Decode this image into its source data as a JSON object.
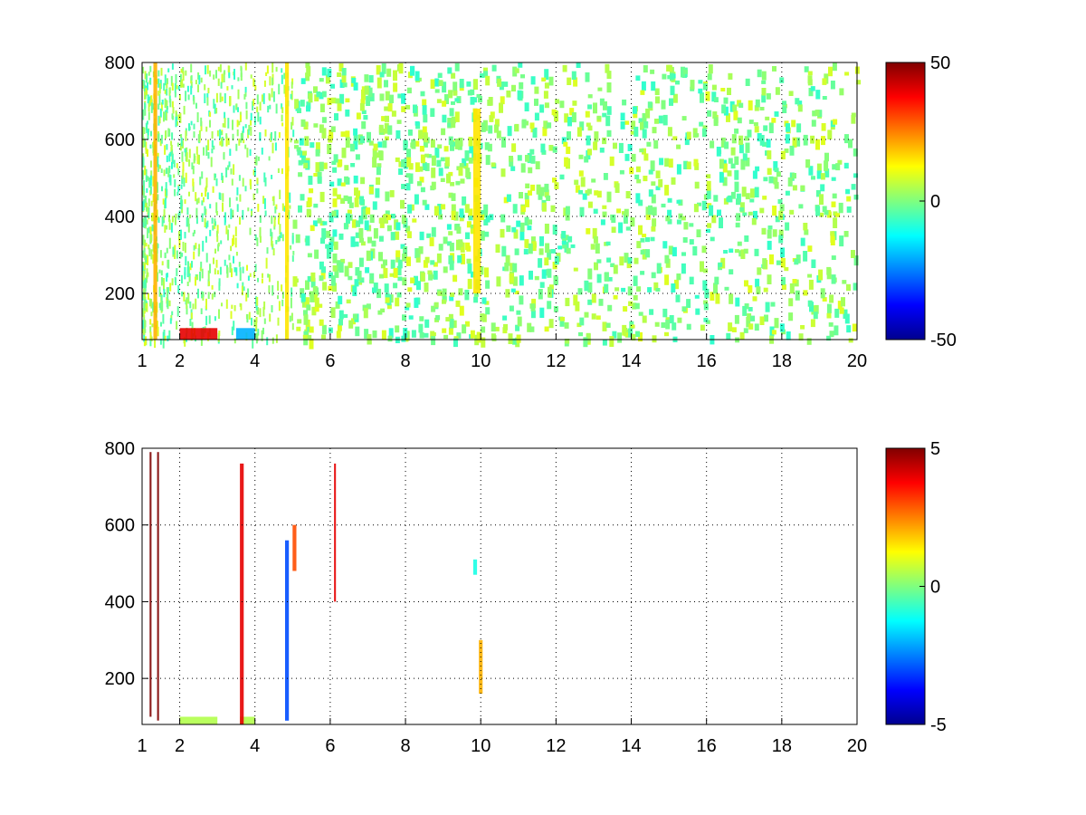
{
  "chart_data": [
    {
      "type": "heatmap",
      "title": "",
      "xlabel": "",
      "ylabel": "",
      "xlim": [
        1,
        20
      ],
      "ylim": [
        80,
        800
      ],
      "xticks": [
        1,
        2,
        4,
        6,
        8,
        10,
        12,
        14,
        16,
        18,
        20
      ],
      "yticks": [
        200,
        400,
        600,
        800
      ],
      "grid": true,
      "colormap": "jet",
      "clim": [
        -50,
        50
      ],
      "colorbar_ticks": [
        50,
        0,
        -50
      ],
      "colors": {
        "low": "#00008f",
        "mid": "#7fff7f",
        "high": "#800000",
        "grid": "#000000"
      },
      "features": [
        {
          "x": [
            2.0,
            3.0
          ],
          "y": [
            80,
            110
          ],
          "value": 40
        },
        {
          "x": [
            3.5,
            4.0
          ],
          "y": [
            80,
            110
          ],
          "value": -20
        },
        {
          "x": [
            9.8,
            10.0
          ],
          "y": [
            200,
            680
          ],
          "value": 15
        },
        {
          "x": [
            1.3,
            1.4
          ],
          "y": [
            80,
            800
          ],
          "value": 20
        },
        {
          "x": [
            4.8,
            4.9
          ],
          "y": [
            80,
            800
          ],
          "value": 15
        }
      ]
    },
    {
      "type": "heatmap",
      "title": "",
      "xlabel": "",
      "ylabel": "",
      "xlim": [
        1,
        20
      ],
      "ylim": [
        80,
        800
      ],
      "xticks": [
        1,
        2,
        4,
        6,
        8,
        10,
        12,
        14,
        16,
        18,
        20
      ],
      "yticks": [
        200,
        400,
        600,
        800
      ],
      "grid": true,
      "colormap": "jet",
      "clim": [
        -5,
        5
      ],
      "colorbar_ticks": [
        5,
        0,
        -5
      ],
      "colors": {
        "low": "#00008f",
        "mid": "#7fff7f",
        "high": "#800000",
        "grid": "#000000"
      },
      "features": [
        {
          "x": [
            1.2,
            1.25
          ],
          "y": [
            100,
            790
          ],
          "value": 5
        },
        {
          "x": [
            1.4,
            1.45
          ],
          "y": [
            90,
            790
          ],
          "value": 5
        },
        {
          "x": [
            2.0,
            3.0
          ],
          "y": [
            80,
            100
          ],
          "value": 0.5
        },
        {
          "x": [
            3.6,
            4.0
          ],
          "y": [
            80,
            100
          ],
          "value": 0.5
        },
        {
          "x": [
            3.6,
            3.7
          ],
          "y": [
            80,
            760
          ],
          "value": 4
        },
        {
          "x": [
            4.8,
            4.9
          ],
          "y": [
            90,
            560
          ],
          "value": -3
        },
        {
          "x": [
            5.0,
            5.1
          ],
          "y": [
            480,
            600
          ],
          "value": 3
        },
        {
          "x": [
            6.1,
            6.15
          ],
          "y": [
            400,
            760
          ],
          "value": 4
        },
        {
          "x": [
            9.8,
            9.9
          ],
          "y": [
            470,
            510
          ],
          "value": -1
        },
        {
          "x": [
            9.95,
            10.05
          ],
          "y": [
            160,
            300
          ],
          "value": 2
        }
      ]
    }
  ]
}
